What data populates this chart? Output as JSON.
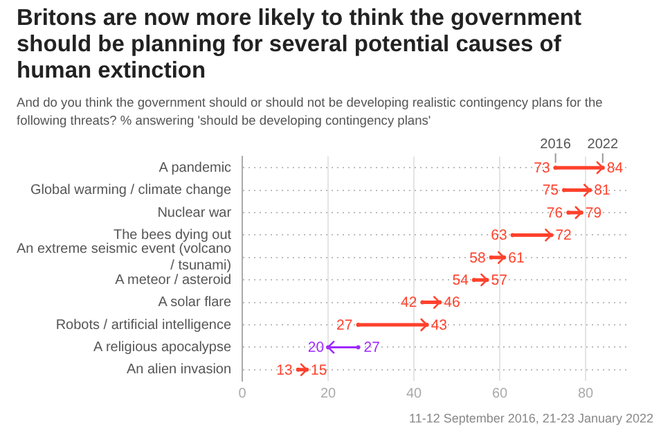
{
  "chart_data": {
    "type": "scatter",
    "orientation": "horizontal",
    "title": "Britons are now more likely to think the government should be planning for several potential causes of human extinction",
    "subtitle": "And do you think the government should or should not be developing realistic contingency plans for the following threats? % answering 'should be developing contingency plans'",
    "categories": [
      "A pandemic",
      "Global warming / climate change",
      "Nuclear war",
      "The bees dying out",
      "An extreme seismic event (volcano / tsunami)",
      "A meteor / asteroid",
      "A solar flare",
      "Robots / artificial intelligence",
      "A religious apocalypse",
      "An alien invasion"
    ],
    "series": [
      {
        "name": "2016",
        "values": [
          73,
          75,
          76,
          63,
          58,
          54,
          42,
          27,
          27,
          13
        ],
        "colors": [
          "#ff412c",
          "#ff412c",
          "#ff412c",
          "#ff412c",
          "#ff412c",
          "#ff412c",
          "#ff412c",
          "#ff412c",
          "#9f29ff",
          "#ff412c"
        ]
      },
      {
        "name": "2022",
        "values": [
          84,
          81,
          79,
          72,
          61,
          57,
          46,
          43,
          20,
          15
        ],
        "colors": [
          "#ff412c",
          "#ff412c",
          "#ff412c",
          "#ff412c",
          "#ff412c",
          "#ff412c",
          "#ff412c",
          "#ff412c",
          "#9f29ff",
          "#ff412c"
        ]
      }
    ],
    "xlim": [
      0,
      90
    ],
    "xticks": [
      0,
      20,
      40,
      60,
      80
    ],
    "grid": true,
    "data_labels": true,
    "annotations": [
      "11-12 September 2016, 21-23 January 2022"
    ]
  }
}
